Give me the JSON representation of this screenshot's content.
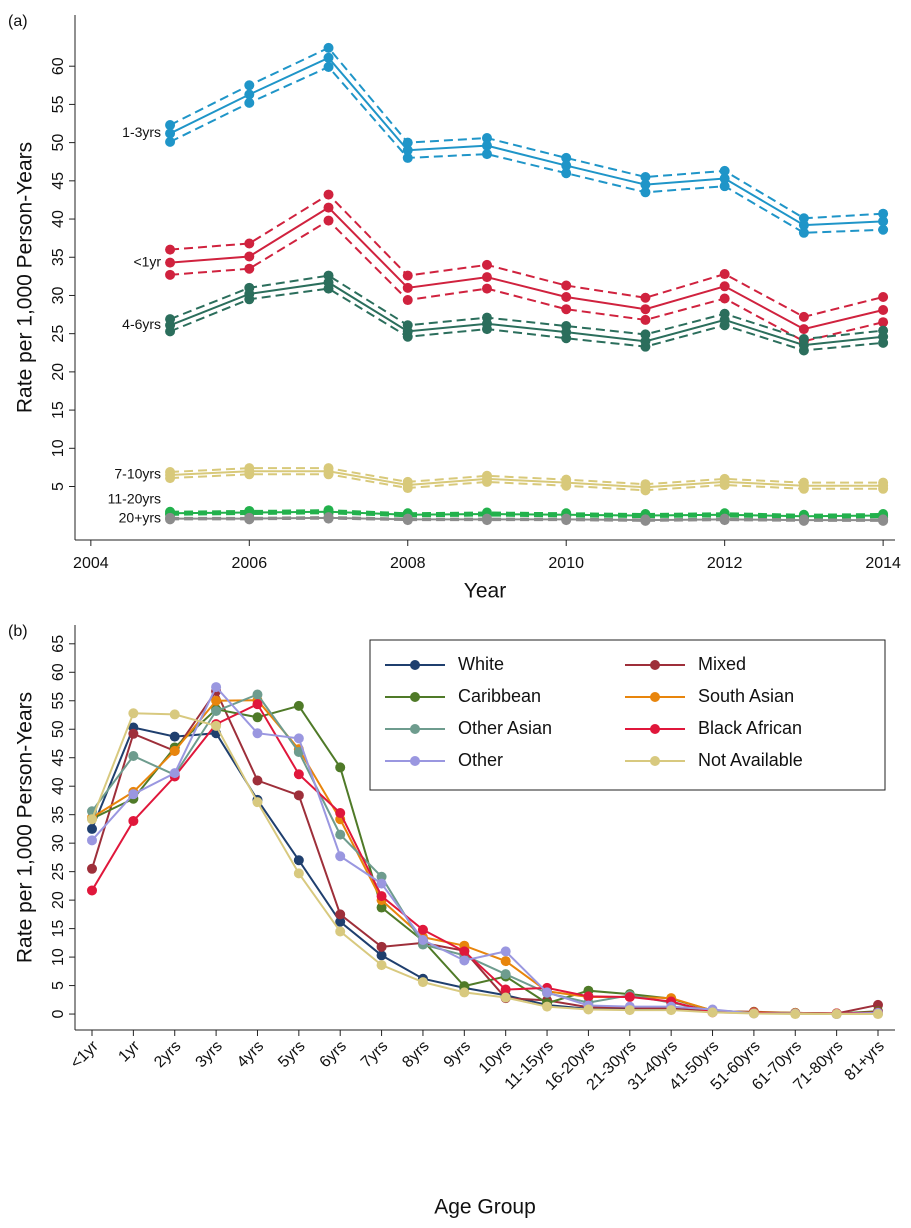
{
  "chart_data": [
    {
      "type": "line",
      "panel_label": "(a)",
      "y_label": "Rate per 1,000 Person-Years",
      "x_label": "Year",
      "x": [
        2005,
        2006,
        2007,
        2008,
        2009,
        2010,
        2011,
        2012,
        2013,
        2014
      ],
      "xlim": [
        2003.8,
        2014.15
      ],
      "xticks": [
        2004,
        2006,
        2008,
        2010,
        2012,
        2014
      ],
      "ylim": [
        -2,
        66.7
      ],
      "yticks": [
        5,
        10,
        15,
        20,
        25,
        30,
        35,
        40,
        45,
        50,
        55,
        60
      ],
      "grid": false,
      "series": [
        {
          "name": "1-3yrs",
          "color": "#1f95c8",
          "values": [
            51.2,
            56.3,
            61.1,
            49.0,
            49.6,
            47.0,
            44.5,
            45.3,
            39.2,
            39.7
          ],
          "upper": [
            52.3,
            57.5,
            62.4,
            50.0,
            50.6,
            48.0,
            45.5,
            46.3,
            40.1,
            40.7
          ],
          "lower": [
            50.1,
            55.2,
            59.9,
            48.0,
            48.5,
            46.0,
            43.5,
            44.3,
            38.2,
            38.6
          ]
        },
        {
          "name": "<1yr",
          "color": "#d0223e",
          "values": [
            34.3,
            35.1,
            41.5,
            31.0,
            32.4,
            29.8,
            28.2,
            31.2,
            25.6,
            28.1
          ],
          "upper": [
            36.0,
            36.8,
            43.2,
            32.6,
            34.0,
            31.3,
            29.7,
            32.8,
            27.2,
            29.8
          ],
          "lower": [
            32.7,
            33.5,
            39.8,
            29.4,
            30.9,
            28.2,
            26.8,
            29.6,
            24.0,
            26.5
          ]
        },
        {
          "name": "4-6yrs",
          "color": "#2b6e5c",
          "values": [
            26.1,
            30.2,
            31.7,
            25.3,
            26.3,
            25.2,
            24.0,
            26.8,
            23.5,
            24.6
          ],
          "upper": [
            26.9,
            31.0,
            32.6,
            26.1,
            27.1,
            26.0,
            24.9,
            27.6,
            24.3,
            25.4
          ],
          "lower": [
            25.3,
            29.5,
            30.9,
            24.6,
            25.6,
            24.4,
            23.3,
            26.1,
            22.8,
            23.8
          ]
        },
        {
          "name": "7-10yrs",
          "color": "#d8c97a",
          "values": [
            6.5,
            7.0,
            7.0,
            5.2,
            6.0,
            5.5,
            4.9,
            5.6,
            5.1,
            5.1
          ],
          "upper": [
            6.9,
            7.4,
            7.4,
            5.6,
            6.4,
            5.9,
            5.3,
            6.0,
            5.5,
            5.5
          ],
          "lower": [
            6.1,
            6.6,
            6.6,
            4.8,
            5.6,
            5.1,
            4.5,
            5.2,
            4.7,
            4.7
          ]
        },
        {
          "name": "11-20yrs",
          "color": "#22b14c",
          "values": [
            1.5,
            1.6,
            1.7,
            1.3,
            1.4,
            1.3,
            1.2,
            1.3,
            1.1,
            1.2
          ],
          "upper": [
            1.7,
            1.8,
            1.9,
            1.5,
            1.6,
            1.5,
            1.4,
            1.5,
            1.3,
            1.4
          ],
          "lower": [
            1.3,
            1.4,
            1.5,
            1.1,
            1.2,
            1.1,
            1.0,
            1.1,
            0.9,
            1.0
          ]
        },
        {
          "name": "20+yrs",
          "color": "#8c8c8c",
          "values": [
            0.8,
            0.8,
            0.9,
            0.7,
            0.7,
            0.7,
            0.6,
            0.7,
            0.6,
            0.6
          ],
          "upper": [
            0.9,
            0.9,
            1.0,
            0.8,
            0.8,
            0.8,
            0.7,
            0.8,
            0.7,
            0.7
          ],
          "lower": [
            0.7,
            0.7,
            0.8,
            0.6,
            0.6,
            0.6,
            0.5,
            0.6,
            0.5,
            0.5
          ]
        }
      ]
    },
    {
      "type": "line",
      "panel_label": "(b)",
      "y_label": "Rate per 1,000 Person-Years",
      "x_label": "Age Group",
      "categories": [
        "<1yr",
        "1yr",
        "2yrs",
        "3yrs",
        "4yrs",
        "5yrs",
        "6yrs",
        "7yrs",
        "8yrs",
        "9yrs",
        "10yrs",
        "11-15yrs",
        "16-20yrs",
        "21-30yrs",
        "31-40yrs",
        "41-50yrs",
        "51-60yrs",
        "61-70yrs",
        "71-80yrs",
        "81+yrs"
      ],
      "ylim": [
        -2.8,
        68.3
      ],
      "yticks": [
        0,
        5,
        10,
        15,
        20,
        25,
        30,
        35,
        40,
        45,
        50,
        55,
        60,
        65
      ],
      "grid": false,
      "legend": "upper right",
      "series": [
        {
          "name": "White",
          "color": "#1f3f6e",
          "values": [
            32.5,
            50.3,
            48.7,
            49.3,
            37.6,
            27.0,
            16.2,
            10.3,
            6.2,
            4.6,
            3.3,
            1.6,
            0.9,
            0.8,
            0.8,
            0.4,
            0.2,
            0.1,
            0.1,
            0.3
          ]
        },
        {
          "name": "Mixed",
          "color": "#9e2f3a",
          "values": [
            25.5,
            49.2,
            46.2,
            56.7,
            41.0,
            38.4,
            17.5,
            11.8,
            12.5,
            11.1,
            2.8,
            2.4,
            1.2,
            1.1,
            1.0,
            0.5,
            0.4,
            0.2,
            0.1,
            1.6
          ]
        },
        {
          "name": "Caribbean",
          "color": "#4f7a28",
          "values": [
            34.3,
            37.8,
            46.8,
            53.5,
            52.1,
            54.1,
            43.3,
            18.7,
            12.9,
            4.9,
            6.6,
            1.9,
            4.1,
            3.5,
            2.7,
            0.6,
            0.3,
            0.2,
            0.1,
            0.5
          ]
        },
        {
          "name": "South Asian",
          "color": "#e8850c",
          "values": [
            34.5,
            39.0,
            46.2,
            55.0,
            55.1,
            46.5,
            34.2,
            20.0,
            13.5,
            12.0,
            9.3,
            4.0,
            3.0,
            3.0,
            2.8,
            0.6,
            0.3,
            0.2,
            0.1,
            0.2
          ]
        },
        {
          "name": "Other Asian",
          "color": "#6e9c8e",
          "values": [
            35.6,
            45.3,
            42.0,
            53.2,
            56.1,
            46.0,
            31.5,
            24.1,
            12.2,
            10.3,
            7.0,
            3.7,
            2.0,
            3.3,
            2.0,
            0.5,
            0.2,
            0.1,
            0.0,
            0.1
          ]
        },
        {
          "name": "Black African",
          "color": "#e0173b",
          "values": [
            21.7,
            33.9,
            41.7,
            50.9,
            54.4,
            42.1,
            35.3,
            20.7,
            14.8,
            11.0,
            4.3,
            4.6,
            3.1,
            3.0,
            2.2,
            0.3,
            0.2,
            0.1,
            0.1,
            0.3
          ]
        },
        {
          "name": "Other",
          "color": "#9a97e0",
          "values": [
            30.5,
            38.6,
            42.3,
            57.4,
            49.3,
            48.4,
            27.7,
            22.9,
            13.0,
            9.4,
            11.0,
            3.8,
            1.5,
            1.3,
            1.3,
            0.8,
            0.1,
            0.1,
            0.0,
            0.2
          ]
        },
        {
          "name": "Not Available",
          "color": "#d8c97f",
          "values": [
            34.2,
            52.8,
            52.6,
            50.6,
            37.2,
            24.7,
            14.5,
            8.6,
            5.6,
            3.8,
            2.9,
            1.3,
            0.8,
            0.7,
            0.7,
            0.3,
            0.1,
            0.0,
            0.0,
            0.0
          ]
        }
      ]
    }
  ]
}
